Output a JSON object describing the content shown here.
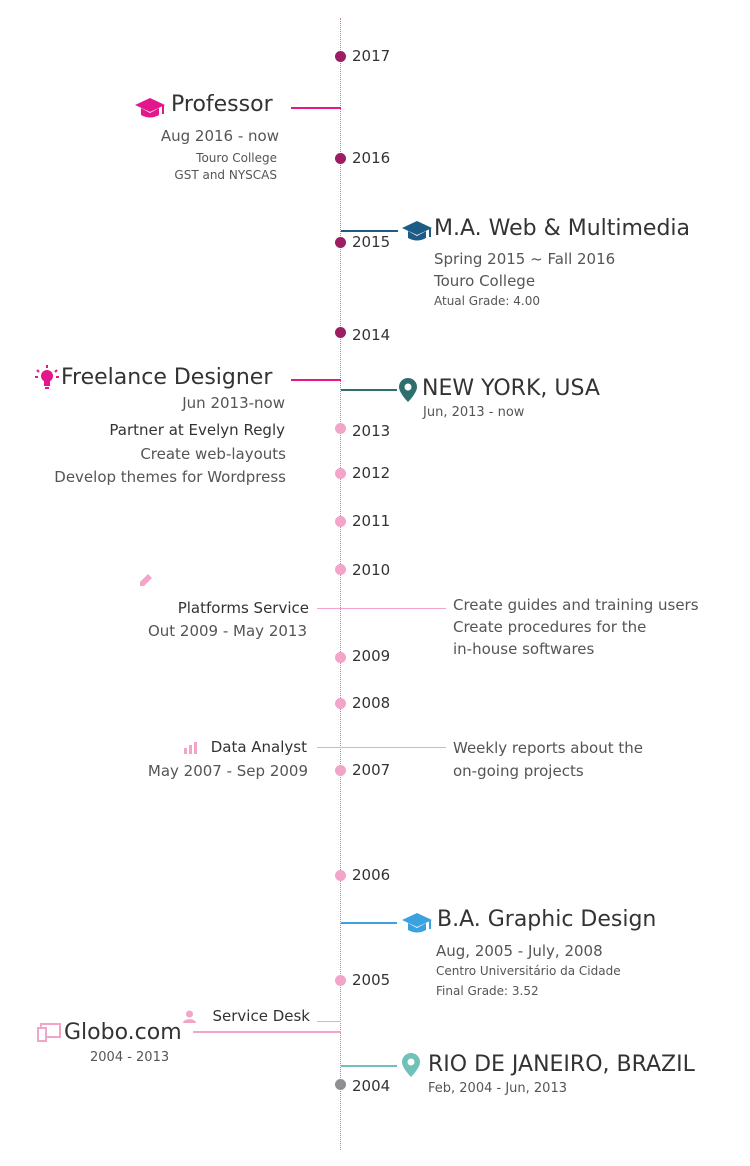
{
  "colors": {
    "magenta": "#e4168c",
    "purple": "#9c1d63",
    "pink": "#f2a4c9",
    "teal_dark": "#2e6f6e",
    "navy": "#1c5c86",
    "blue": "#3aa3df",
    "teal_light": "#6fc1b9",
    "gray": "#8e8e93"
  },
  "years": [
    "2017",
    "2016",
    "2015",
    "2014",
    "2013",
    "2012",
    "2011",
    "2010",
    "2009",
    "2008",
    "2007",
    "2006",
    "2005",
    "2004"
  ],
  "entries": {
    "professor": {
      "title": "Professor",
      "period": "Aug 2016 - now",
      "org": "Touro College",
      "dept": "GST and NYSCAS",
      "icon": "graduation-cap-icon"
    },
    "ma": {
      "title": "M.A. Web & Multimedia",
      "period": "Spring 2015 ~ Fall 2016",
      "org": "Touro College",
      "grade": "Atual Grade: 4.00",
      "icon": "graduation-cap-icon"
    },
    "freelance": {
      "title": "Freelance Designer",
      "period": "Jun 2013-now",
      "partner": "Partner at Evelyn Regly",
      "task1": "Create web-layouts",
      "task2": "Develop themes for Wordpress",
      "icon": "lightbulb-icon"
    },
    "newyork": {
      "title": "NEW YORK, USA",
      "period": "Jun, 2013 - now",
      "icon": "map-pin-icon"
    },
    "platforms": {
      "title": "Platforms Service",
      "period": "Out 2009 - May 2013",
      "desc1": "Create guides and training users",
      "desc2": "Create procedures for the",
      "desc3": "in-house softwares",
      "icon": "pencil-icon"
    },
    "analyst": {
      "title": "Data Analyst",
      "period": "May 2007 - Sep 2009",
      "desc1": "Weekly reports about the",
      "desc2": "on-going projects",
      "icon": "bar-chart-icon"
    },
    "ba": {
      "title": "B.A. Graphic Design",
      "period": "Aug, 2005 - July, 2008",
      "org": "Centro Universitário da Cidade",
      "grade": "Final Grade: 3.52",
      "icon": "graduation-cap-icon"
    },
    "servicedesk": {
      "title": "Service Desk",
      "icon": "user-icon"
    },
    "globo": {
      "title": "Globo.com",
      "period": "2004 - 2013",
      "icon": "monitor-icon"
    },
    "rio": {
      "title": "RIO DE JANEIRO, BRAZIL",
      "period": "Feb, 2004 - Jun, 2013",
      "icon": "map-pin-icon"
    }
  }
}
